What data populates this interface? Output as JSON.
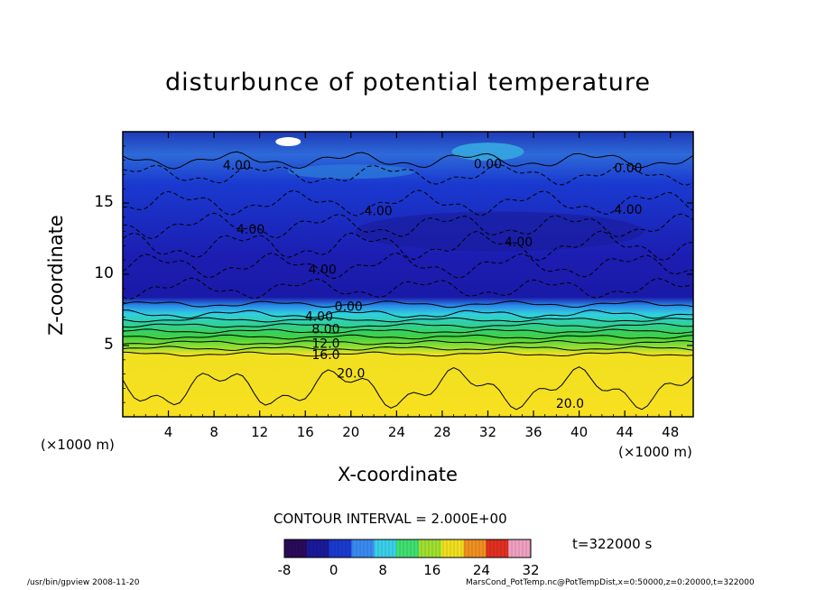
{
  "chart_data": {
    "type": "heatmap",
    "title": "disturbunce of potential temperature",
    "xlabel": "X-coordinate",
    "ylabel": "Z-coordinate",
    "x_unit": "(×1000 m)",
    "x_ticks": [
      4,
      8,
      12,
      16,
      20,
      24,
      28,
      32,
      36,
      40,
      44,
      48
    ],
    "y_ticks": [
      5,
      10,
      15
    ],
    "xlim": [
      0,
      50
    ],
    "ylim": [
      0,
      20
    ],
    "contour_interval_label": "CONTOUR INTERVAL = 2.000E+00",
    "contour_labels": [
      {
        "text": "4.00",
        "x": 10,
        "z": 17.6
      },
      {
        "text": "0.00",
        "x": 32,
        "z": 17.7
      },
      {
        "text": "0.00",
        "x": 44.3,
        "z": 17.4
      },
      {
        "text": "4.00",
        "x": 44.3,
        "z": 14.5
      },
      {
        "text": "4.00",
        "x": 22.4,
        "z": 14.4
      },
      {
        "text": "4.00",
        "x": 11.2,
        "z": 13.1
      },
      {
        "text": "4.00",
        "x": 34.7,
        "z": 12.2
      },
      {
        "text": "4.00",
        "x": 17.5,
        "z": 10.3
      },
      {
        "text": "0.00",
        "x": 19.8,
        "z": 7.7
      },
      {
        "text": "4.00",
        "x": 17.2,
        "z": 7.0
      },
      {
        "text": "8.00",
        "x": 17.8,
        "z": 6.1
      },
      {
        "text": "12.0",
        "x": 17.8,
        "z": 5.1
      },
      {
        "text": "16.0",
        "x": 17.8,
        "z": 4.3
      },
      {
        "text": "20.0",
        "x": 20.0,
        "z": 3.0
      },
      {
        "text": "20.0",
        "x": 39.2,
        "z": 0.9
      }
    ],
    "colorbar": {
      "min": -8,
      "max": 32,
      "ticks": [
        -8,
        0,
        8,
        16,
        24,
        32
      ],
      "colors": [
        "#2a0a5a",
        "#1a1a9a",
        "#1a3ad0",
        "#3a8af0",
        "#3ad0e8",
        "#40e070",
        "#a0e030",
        "#f0e020",
        "#f09020",
        "#e03020",
        "#f0a0c0"
      ]
    },
    "time_label": "t=322000 s"
  },
  "footer": {
    "left": "/usr/bin/gpview   2008-11-20",
    "right": "MarsCond_PotTemp.nc@PotTempDist,x=0:50000,z=0:20000,t=322000"
  }
}
